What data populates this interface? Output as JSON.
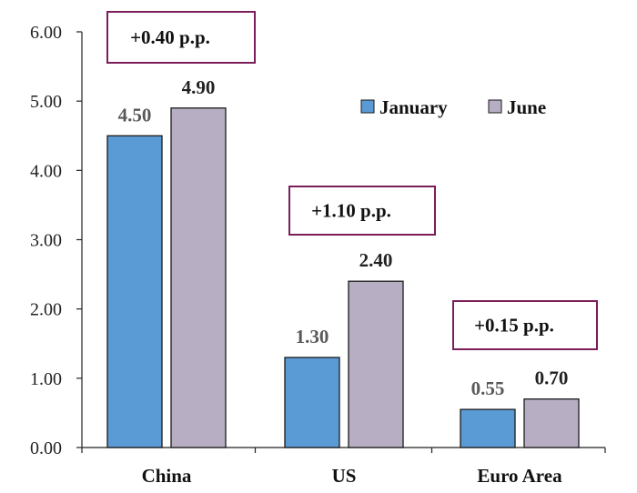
{
  "chart_data": {
    "type": "bar",
    "categories": [
      "China",
      "US",
      "Euro Area"
    ],
    "series": [
      {
        "name": "January",
        "values": [
          4.5,
          1.3,
          0.55
        ],
        "color": "#5b9bd5",
        "label_color": "#595959"
      },
      {
        "name": "June",
        "values": [
          4.9,
          2.4,
          0.7
        ],
        "color": "#b7aec4",
        "label_color": "#222222"
      }
    ],
    "value_labels": [
      [
        "4.50",
        "1.30",
        "0.55"
      ],
      [
        "4.90",
        "2.40",
        "0.70"
      ]
    ],
    "annotations": [
      "+0.40 p.p.",
      "+1.10 p.p.",
      "+0.15 p.p."
    ],
    "annotation_border_color": "#7b1e5a",
    "yticks": [
      "0.00",
      "1.00",
      "2.00",
      "3.00",
      "4.00",
      "5.00",
      "6.00"
    ],
    "ylim": [
      0,
      6
    ],
    "legend_position": "top-right",
    "grid": false
  }
}
